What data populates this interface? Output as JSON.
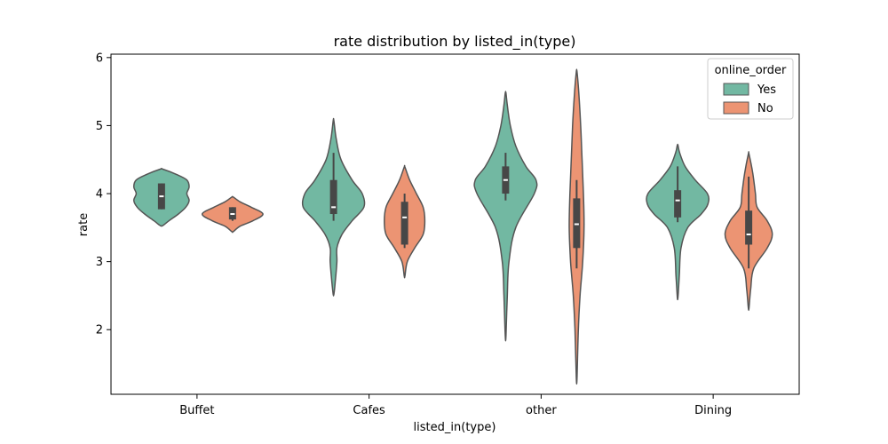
{
  "chart_data": {
    "type": "violin",
    "title": "rate distribution by listed_in(type)",
    "xlabel": "listed_in(type)",
    "ylabel": "rate",
    "ylim": [
      1.05,
      6.05
    ],
    "yticks": [
      2,
      3,
      4,
      5,
      6
    ],
    "categories": [
      "Buffet",
      "Cafes",
      "other",
      "Dining"
    ],
    "legend": {
      "title": "online_order",
      "placement": "upper right",
      "entries": [
        {
          "label": "Yes",
          "color": "#72b8a2"
        },
        {
          "label": "No",
          "color": "#ec9473"
        }
      ]
    },
    "series": [
      {
        "name": "Yes",
        "color": "#72b8a2",
        "violins": [
          {
            "category": "Buffet",
            "min": 3.53,
            "max": 4.36,
            "q1": 3.77,
            "median": 3.96,
            "q3": 4.15,
            "whisker_low": 3.77,
            "whisker_high": 4.15,
            "profile": [
              [
                3.53,
                0.04
              ],
              [
                3.6,
                0.22
              ],
              [
                3.7,
                0.5
              ],
              [
                3.8,
                0.72
              ],
              [
                3.9,
                0.82
              ],
              [
                4.0,
                0.75
              ],
              [
                4.1,
                0.82
              ],
              [
                4.2,
                0.75
              ],
              [
                4.28,
                0.45
              ],
              [
                4.36,
                0.04
              ]
            ]
          },
          {
            "category": "Cafes",
            "min": 2.52,
            "max": 5.07,
            "q1": 3.7,
            "median": 3.8,
            "q3": 4.2,
            "whisker_low": 3.6,
            "whisker_high": 4.6,
            "profile": [
              [
                2.52,
                0.01
              ],
              [
                2.7,
                0.05
              ],
              [
                3.0,
                0.1
              ],
              [
                3.2,
                0.1
              ],
              [
                3.4,
                0.25
              ],
              [
                3.6,
                0.55
              ],
              [
                3.8,
                0.9
              ],
              [
                4.0,
                0.85
              ],
              [
                4.2,
                0.55
              ],
              [
                4.5,
                0.22
              ],
              [
                4.8,
                0.08
              ],
              [
                5.07,
                0.01
              ]
            ]
          },
          {
            "category": "other",
            "min": 1.91,
            "max": 5.48,
            "q1": 4.0,
            "median": 4.2,
            "q3": 4.4,
            "whisker_low": 3.9,
            "whisker_high": 4.6,
            "profile": [
              [
                1.91,
                0.01
              ],
              [
                2.5,
                0.05
              ],
              [
                3.0,
                0.1
              ],
              [
                3.5,
                0.3
              ],
              [
                4.0,
                0.85
              ],
              [
                4.2,
                0.9
              ],
              [
                4.4,
                0.6
              ],
              [
                4.7,
                0.3
              ],
              [
                5.0,
                0.14
              ],
              [
                5.3,
                0.05
              ],
              [
                5.48,
                0.01
              ]
            ]
          },
          {
            "category": "Dining",
            "min": 2.48,
            "max": 4.71,
            "q1": 3.65,
            "median": 3.9,
            "q3": 4.05,
            "whisker_low": 3.58,
            "whisker_high": 4.4,
            "profile": [
              [
                2.48,
                0.01
              ],
              [
                2.8,
                0.05
              ],
              [
                3.2,
                0.1
              ],
              [
                3.5,
                0.3
              ],
              [
                3.7,
                0.7
              ],
              [
                3.85,
                0.9
              ],
              [
                4.0,
                0.88
              ],
              [
                4.2,
                0.52
              ],
              [
                4.4,
                0.22
              ],
              [
                4.6,
                0.06
              ],
              [
                4.71,
                0.01
              ]
            ]
          }
        ]
      },
      {
        "name": "No",
        "color": "#ec9473",
        "violins": [
          {
            "category": "Buffet",
            "min": 3.44,
            "max": 3.95,
            "q1": 3.62,
            "median": 3.7,
            "q3": 3.8,
            "whisker_low": 3.6,
            "whisker_high": 3.8,
            "profile": [
              [
                3.44,
                0.02
              ],
              [
                3.52,
                0.22
              ],
              [
                3.6,
                0.6
              ],
              [
                3.7,
                0.9
              ],
              [
                3.8,
                0.55
              ],
              [
                3.88,
                0.22
              ],
              [
                3.95,
                0.02
              ]
            ]
          },
          {
            "category": "Cafes",
            "min": 2.79,
            "max": 4.39,
            "q1": 3.25,
            "median": 3.65,
            "q3": 3.88,
            "whisker_low": 3.2,
            "whisker_high": 4.0,
            "profile": [
              [
                2.79,
                0.01
              ],
              [
                3.0,
                0.08
              ],
              [
                3.2,
                0.3
              ],
              [
                3.4,
                0.55
              ],
              [
                3.6,
                0.6
              ],
              [
                3.8,
                0.55
              ],
              [
                4.0,
                0.35
              ],
              [
                4.2,
                0.15
              ],
              [
                4.39,
                0.01
              ]
            ]
          },
          {
            "category": "other",
            "min": 1.29,
            "max": 5.79,
            "q1": 3.2,
            "median": 3.55,
            "q3": 3.93,
            "whisker_low": 2.9,
            "whisker_high": 4.2,
            "profile": [
              [
                1.29,
                0.01
              ],
              [
                2.0,
                0.05
              ],
              [
                2.5,
                0.1
              ],
              [
                3.0,
                0.18
              ],
              [
                3.5,
                0.22
              ],
              [
                4.0,
                0.2
              ],
              [
                4.5,
                0.16
              ],
              [
                5.0,
                0.12
              ],
              [
                5.5,
                0.06
              ],
              [
                5.79,
                0.01
              ]
            ]
          },
          {
            "category": "Dining",
            "min": 2.32,
            "max": 4.58,
            "q1": 3.25,
            "median": 3.4,
            "q3": 3.75,
            "whisker_low": 2.9,
            "whisker_high": 4.25,
            "profile": [
              [
                2.32,
                0.01
              ],
              [
                2.6,
                0.06
              ],
              [
                2.9,
                0.15
              ],
              [
                3.2,
                0.55
              ],
              [
                3.4,
                0.7
              ],
              [
                3.6,
                0.55
              ],
              [
                3.8,
                0.25
              ],
              [
                4.0,
                0.2
              ],
              [
                4.3,
                0.12
              ],
              [
                4.58,
                0.01
              ]
            ]
          }
        ]
      }
    ]
  }
}
